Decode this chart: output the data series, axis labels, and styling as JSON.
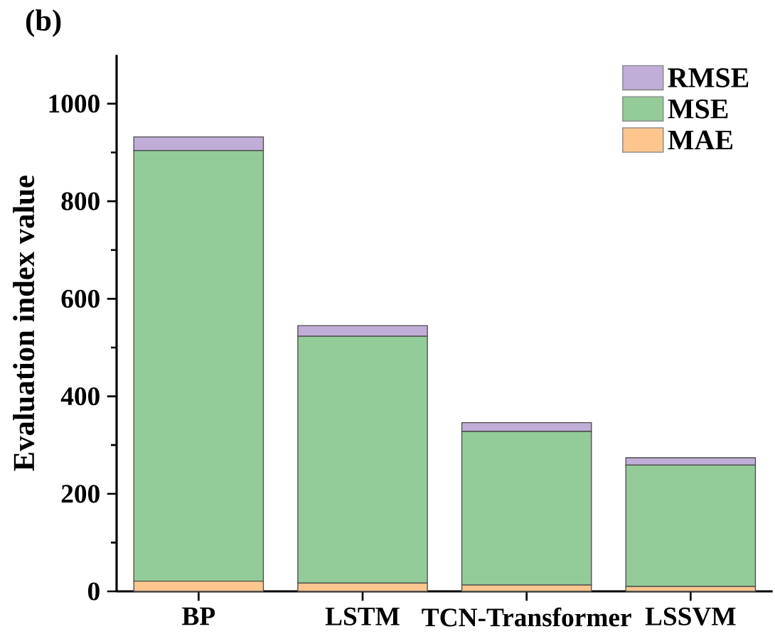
{
  "chart_data": {
    "type": "bar",
    "title": "(b)",
    "ylabel": "Evaluation index value",
    "stacked": true,
    "categories": [
      "BP",
      "LSTM",
      "TCN-Transformer",
      "LSSVM"
    ],
    "series": [
      {
        "name": "MAE",
        "color": "#fcc68e",
        "values": [
          21,
          17,
          13,
          10
        ]
      },
      {
        "name": "MSE",
        "color": "#93cc98",
        "values": [
          883,
          506,
          315,
          249
        ]
      },
      {
        "name": "RMSE",
        "color": "#c0aed8",
        "values": [
          28,
          22,
          18,
          15
        ]
      }
    ],
    "ylim": [
      0,
      1100
    ],
    "yticks": [
      0,
      200,
      400,
      600,
      800,
      1000
    ],
    "legend": "top right"
  }
}
